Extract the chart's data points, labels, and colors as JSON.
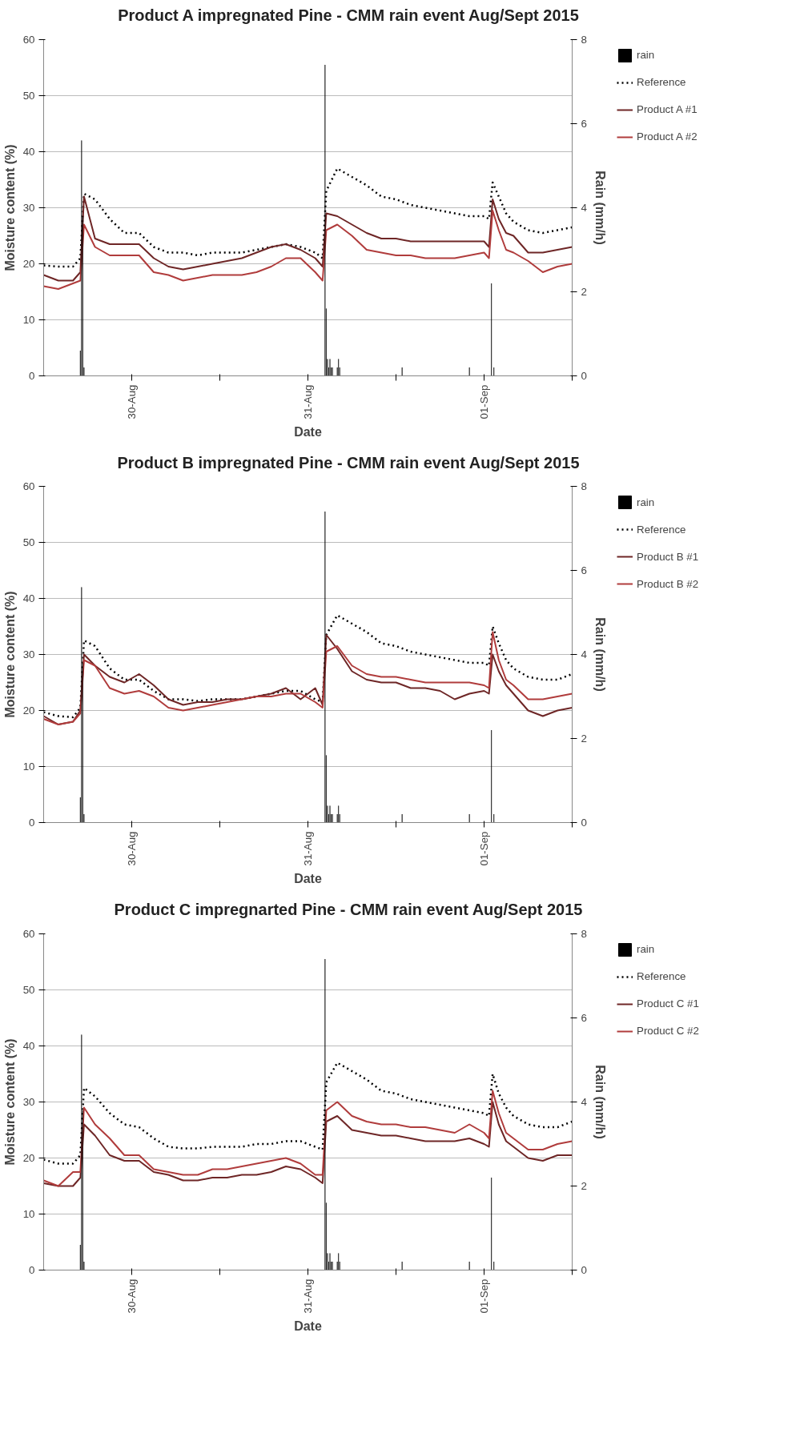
{
  "chart_data": [
    {
      "type": "line",
      "title": "Product A impregnated Pine - CMM rain event Aug/Sept 2015",
      "xlabel": "Date",
      "ylabel": "Moisture content (%)",
      "y2label": "Rain (mm/h)",
      "x": [
        "2015-08-29T12:00",
        "2015-08-29T14:00",
        "2015-08-29T16:00",
        "2015-08-29T17:00",
        "2015-08-29T17:30",
        "2015-08-29T19:00",
        "2015-08-29T21:00",
        "2015-08-29T23:00",
        "2015-08-30T01:00",
        "2015-08-30T03:00",
        "2015-08-30T05:00",
        "2015-08-30T07:00",
        "2015-08-30T09:00",
        "2015-08-30T11:00",
        "2015-08-30T13:00",
        "2015-08-30T15:00",
        "2015-08-30T17:00",
        "2015-08-30T19:00",
        "2015-08-30T21:00",
        "2015-08-30T23:00",
        "2015-08-31T01:00",
        "2015-08-31T02:00",
        "2015-08-31T02:30",
        "2015-08-31T04:00",
        "2015-08-31T06:00",
        "2015-08-31T08:00",
        "2015-08-31T10:00",
        "2015-08-31T12:00",
        "2015-08-31T14:00",
        "2015-08-31T16:00",
        "2015-08-31T18:00",
        "2015-08-31T20:00",
        "2015-08-31T22:00",
        "2015-09-01T00:00",
        "2015-09-01T00:40",
        "2015-09-01T01:10",
        "2015-09-01T02:00",
        "2015-09-01T03:00",
        "2015-09-01T04:00",
        "2015-09-01T06:00",
        "2015-09-01T08:00",
        "2015-09-01T10:00",
        "2015-09-01T12:00"
      ],
      "xlim": [
        "2015-08-29T12:00",
        "2015-09-01T12:00"
      ],
      "xticks": [
        {
          "value": "2015-08-30",
          "label": "30-Aug"
        },
        {
          "value": "2015-08-30T12:00",
          "label": null
        },
        {
          "value": "2015-08-31",
          "label": "31-Aug"
        },
        {
          "value": "2015-08-31T12:00",
          "label": null
        },
        {
          "value": "2015-09-01",
          "label": "01-Sep"
        },
        {
          "value": "2015-09-01T12:00",
          "label": null
        }
      ],
      "ylim": [
        0,
        60
      ],
      "yticks": [
        0,
        10,
        20,
        30,
        40,
        50,
        60
      ],
      "y2lim": [
        0,
        8
      ],
      "y2ticks": [
        0,
        2,
        4,
        6,
        8
      ],
      "grid": "y",
      "legend": "right",
      "series": [
        {
          "name": "rain",
          "type": "bar",
          "axis": "y2",
          "color": "#000000",
          "x": [
            "2015-08-29T17:00",
            "2015-08-29T17:10",
            "2015-08-29T17:20",
            "2015-08-29T17:30",
            "2015-08-31T02:20",
            "2015-08-31T02:30",
            "2015-08-31T02:40",
            "2015-08-31T02:50",
            "2015-08-31T03:00",
            "2015-08-31T03:10",
            "2015-08-31T03:20",
            "2015-08-31T04:00",
            "2015-08-31T04:10",
            "2015-08-31T04:20",
            "2015-08-31T12:50",
            "2015-08-31T22:00",
            "2015-09-01T01:00",
            "2015-09-01T01:20"
          ],
          "values": [
            0.6,
            5.6,
            3.8,
            0.2,
            7.4,
            1.6,
            0.4,
            0.2,
            0.4,
            0.2,
            0.2,
            0.2,
            0.4,
            0.2,
            0.2,
            0.2,
            2.2,
            0.2
          ]
        },
        {
          "name": "Reference",
          "color": "#000000",
          "line_style": "dotted",
          "values": [
            19.7,
            19.5,
            19.5,
            21,
            32.5,
            31.5,
            28,
            25.5,
            25.5,
            23,
            22,
            22,
            21.5,
            22,
            22,
            22,
            22.5,
            23,
            23.5,
            23,
            22,
            21,
            33,
            37,
            35.5,
            34,
            32,
            31.5,
            30.5,
            30,
            29.5,
            29,
            28.5,
            28.5,
            28,
            34.5,
            32,
            29,
            27.5,
            26,
            25.5,
            26,
            26.5
          ]
        },
        {
          "name": "Product A #1",
          "color": "#6e2626",
          "values": [
            18,
            17,
            17,
            18.5,
            32,
            24.5,
            23.5,
            23.5,
            23.5,
            21,
            19.5,
            19,
            19.5,
            20,
            20.5,
            21,
            22,
            23,
            23.5,
            22.5,
            21,
            19.5,
            29,
            28.5,
            27,
            25.5,
            24.5,
            24.5,
            24,
            24,
            24,
            24,
            24,
            24,
            23,
            31.5,
            28,
            25.5,
            25,
            22,
            22,
            22.5,
            23
          ]
        },
        {
          "name": "Product A #2",
          "color": "#b03c3c",
          "values": [
            16,
            15.5,
            16.5,
            17,
            27,
            23,
            21.5,
            21.5,
            21.5,
            18.5,
            18,
            17,
            17.5,
            18,
            18,
            18,
            18.5,
            19.5,
            21,
            21,
            18.5,
            17,
            26,
            27,
            25,
            22.5,
            22,
            21.5,
            21.5,
            21,
            21,
            21,
            21.5,
            22,
            21,
            29.5,
            26,
            22.5,
            22,
            20.5,
            18.5,
            19.5,
            20
          ]
        }
      ]
    },
    {
      "type": "line",
      "title": "Product B impregnated Pine - CMM rain event Aug/Sept 2015",
      "xlabel": "Date",
      "ylabel": "Moisture content (%)",
      "y2label": "Rain (mm/h)",
      "x": [
        "2015-08-29T12:00",
        "2015-08-29T14:00",
        "2015-08-29T16:00",
        "2015-08-29T17:00",
        "2015-08-29T17:30",
        "2015-08-29T19:00",
        "2015-08-29T21:00",
        "2015-08-29T23:00",
        "2015-08-30T01:00",
        "2015-08-30T03:00",
        "2015-08-30T05:00",
        "2015-08-30T07:00",
        "2015-08-30T09:00",
        "2015-08-30T11:00",
        "2015-08-30T13:00",
        "2015-08-30T15:00",
        "2015-08-30T17:00",
        "2015-08-30T19:00",
        "2015-08-30T21:00",
        "2015-08-30T23:00",
        "2015-08-31T01:00",
        "2015-08-31T02:00",
        "2015-08-31T02:30",
        "2015-08-31T04:00",
        "2015-08-31T06:00",
        "2015-08-31T08:00",
        "2015-08-31T10:00",
        "2015-08-31T12:00",
        "2015-08-31T14:00",
        "2015-08-31T16:00",
        "2015-08-31T18:00",
        "2015-08-31T20:00",
        "2015-08-31T22:00",
        "2015-09-01T00:00",
        "2015-09-01T00:40",
        "2015-09-01T01:10",
        "2015-09-01T02:00",
        "2015-09-01T03:00",
        "2015-09-01T04:00",
        "2015-09-01T06:00",
        "2015-09-01T08:00",
        "2015-09-01T10:00",
        "2015-09-01T12:00"
      ],
      "xlim": [
        "2015-08-29T12:00",
        "2015-09-01T12:00"
      ],
      "xticks": [
        {
          "value": "2015-08-30",
          "label": "30-Aug"
        },
        {
          "value": "2015-08-30T12:00",
          "label": null
        },
        {
          "value": "2015-08-31",
          "label": "31-Aug"
        },
        {
          "value": "2015-08-31T12:00",
          "label": null
        },
        {
          "value": "2015-09-01",
          "label": "01-Sep"
        },
        {
          "value": "2015-09-01T12:00",
          "label": null
        }
      ],
      "ylim": [
        0,
        60
      ],
      "yticks": [
        0,
        10,
        20,
        30,
        40,
        50,
        60
      ],
      "y2lim": [
        0,
        8
      ],
      "y2ticks": [
        0,
        2,
        4,
        6,
        8
      ],
      "grid": "y",
      "legend": "right",
      "series": [
        {
          "name": "rain",
          "type": "bar",
          "axis": "y2",
          "color": "#000000",
          "x": [
            "2015-08-29T17:00",
            "2015-08-29T17:10",
            "2015-08-29T17:20",
            "2015-08-29T17:30",
            "2015-08-31T02:20",
            "2015-08-31T02:30",
            "2015-08-31T02:40",
            "2015-08-31T02:50",
            "2015-08-31T03:00",
            "2015-08-31T03:10",
            "2015-08-31T03:20",
            "2015-08-31T04:00",
            "2015-08-31T04:10",
            "2015-08-31T04:20",
            "2015-08-31T12:50",
            "2015-08-31T22:00",
            "2015-09-01T01:00",
            "2015-09-01T01:20"
          ],
          "values": [
            0.6,
            5.6,
            3.8,
            0.2,
            7.4,
            1.6,
            0.4,
            0.2,
            0.4,
            0.2,
            0.2,
            0.2,
            0.4,
            0.2,
            0.2,
            0.2,
            2.2,
            0.2
          ]
        },
        {
          "name": "Reference",
          "color": "#000000",
          "line_style": "dotted",
          "values": [
            19.7,
            19,
            18.8,
            20.5,
            32.5,
            31.5,
            27.5,
            25.5,
            25.5,
            23.5,
            22,
            22,
            21.7,
            22,
            22,
            22,
            22.5,
            23,
            23.5,
            23.5,
            22,
            21.5,
            33.5,
            37,
            35.5,
            34,
            32,
            31.5,
            30.5,
            30,
            29.5,
            29,
            28.5,
            28.5,
            28,
            35,
            32,
            29,
            27.5,
            26,
            25.5,
            25.5,
            26.5
          ]
        },
        {
          "name": "Product B #1",
          "color": "#6e2626",
          "values": [
            19,
            17.5,
            18,
            20,
            30,
            28,
            26,
            25,
            26.5,
            24.5,
            22,
            21,
            21.5,
            21.5,
            22,
            22,
            22.5,
            23,
            24,
            22,
            24,
            21,
            33.5,
            31,
            27,
            25.5,
            25,
            25,
            24,
            24,
            23.5,
            22,
            23,
            23.5,
            23,
            30,
            27,
            24.5,
            23,
            20,
            19,
            20,
            20.5
          ]
        },
        {
          "name": "Product B #2",
          "color": "#b03c3c",
          "values": [
            18.5,
            17.5,
            18,
            19.5,
            29,
            28,
            24,
            23,
            23.5,
            22.5,
            20.5,
            20,
            20.5,
            21,
            21.5,
            22,
            22.5,
            22.5,
            23,
            23,
            21.5,
            20.5,
            30.5,
            31.5,
            28,
            26.5,
            26,
            26,
            25.5,
            25,
            25,
            25,
            25,
            24.5,
            24,
            34,
            29,
            25.5,
            24.5,
            22,
            22,
            22.5,
            23
          ]
        }
      ]
    },
    {
      "type": "line",
      "title": "Product C impregnarted Pine - CMM rain event Aug/Sept 2015",
      "xlabel": "Date",
      "ylabel": "Moisture content (%)",
      "y2label": "Rain (mm/h)",
      "x": [
        "2015-08-29T12:00",
        "2015-08-29T14:00",
        "2015-08-29T16:00",
        "2015-08-29T17:00",
        "2015-08-29T17:30",
        "2015-08-29T19:00",
        "2015-08-29T21:00",
        "2015-08-29T23:00",
        "2015-08-30T01:00",
        "2015-08-30T03:00",
        "2015-08-30T05:00",
        "2015-08-30T07:00",
        "2015-08-30T09:00",
        "2015-08-30T11:00",
        "2015-08-30T13:00",
        "2015-08-30T15:00",
        "2015-08-30T17:00",
        "2015-08-30T19:00",
        "2015-08-30T21:00",
        "2015-08-30T23:00",
        "2015-08-31T01:00",
        "2015-08-31T02:00",
        "2015-08-31T02:30",
        "2015-08-31T04:00",
        "2015-08-31T06:00",
        "2015-08-31T08:00",
        "2015-08-31T10:00",
        "2015-08-31T12:00",
        "2015-08-31T14:00",
        "2015-08-31T16:00",
        "2015-08-31T18:00",
        "2015-08-31T20:00",
        "2015-08-31T22:00",
        "2015-09-01T00:00",
        "2015-09-01T00:40",
        "2015-09-01T01:10",
        "2015-09-01T02:00",
        "2015-09-01T03:00",
        "2015-09-01T04:00",
        "2015-09-01T06:00",
        "2015-09-01T08:00",
        "2015-09-01T10:00",
        "2015-09-01T12:00"
      ],
      "xlim": [
        "2015-08-29T12:00",
        "2015-09-01T12:00"
      ],
      "xticks": [
        {
          "value": "2015-08-30",
          "label": "30-Aug"
        },
        {
          "value": "2015-08-30T12:00",
          "label": null
        },
        {
          "value": "2015-08-31",
          "label": "31-Aug"
        },
        {
          "value": "2015-08-31T12:00",
          "label": null
        },
        {
          "value": "2015-09-01",
          "label": "01-Sep"
        },
        {
          "value": "2015-09-01T12:00",
          "label": null
        }
      ],
      "ylim": [
        0,
        60
      ],
      "yticks": [
        0,
        10,
        20,
        30,
        40,
        50,
        60
      ],
      "y2lim": [
        0,
        8
      ],
      "y2ticks": [
        0,
        2,
        4,
        6,
        8
      ],
      "grid": "y",
      "legend": "right",
      "series": [
        {
          "name": "rain",
          "type": "bar",
          "axis": "y2",
          "color": "#000000",
          "x": [
            "2015-08-29T17:00",
            "2015-08-29T17:10",
            "2015-08-29T17:20",
            "2015-08-29T17:30",
            "2015-08-31T02:20",
            "2015-08-31T02:30",
            "2015-08-31T02:40",
            "2015-08-31T02:50",
            "2015-08-31T03:00",
            "2015-08-31T03:10",
            "2015-08-31T03:20",
            "2015-08-31T04:00",
            "2015-08-31T04:10",
            "2015-08-31T04:20",
            "2015-08-31T12:50",
            "2015-08-31T22:00",
            "2015-09-01T01:00",
            "2015-09-01T01:20"
          ],
          "values": [
            0.6,
            5.6,
            3.8,
            0.2,
            7.4,
            1.6,
            0.4,
            0.2,
            0.4,
            0.2,
            0.2,
            0.2,
            0.4,
            0.2,
            0.2,
            0.2,
            2.2,
            0.2
          ]
        },
        {
          "name": "Reference",
          "color": "#000000",
          "line_style": "dotted",
          "values": [
            19.7,
            19,
            19,
            20.5,
            32.5,
            31,
            28,
            26,
            25.5,
            23.5,
            22,
            21.7,
            21.7,
            22,
            22,
            22,
            22.5,
            22.5,
            23,
            23,
            22,
            21.5,
            33.5,
            37,
            35.5,
            34,
            32,
            31.5,
            30.5,
            30,
            29.5,
            29,
            28.5,
            28,
            27.5,
            35,
            31.5,
            29,
            27.5,
            26,
            25.5,
            25.5,
            26.5
          ]
        },
        {
          "name": "Product C #1",
          "color": "#6e2626",
          "values": [
            15.5,
            15,
            15,
            16.5,
            26,
            24,
            20.5,
            19.5,
            19.5,
            17.5,
            17,
            16,
            16,
            16.5,
            16.5,
            17,
            17,
            17.5,
            18.5,
            18,
            16.5,
            15.5,
            26.5,
            27.5,
            25,
            24.5,
            24,
            24,
            23.5,
            23,
            23,
            23,
            23.5,
            22.5,
            22,
            30,
            26,
            23,
            22,
            20,
            19.5,
            20.5,
            20.5
          ]
        },
        {
          "name": "Product C #2",
          "color": "#b03c3c",
          "values": [
            16,
            15,
            17.5,
            17.5,
            29,
            26,
            23.5,
            20.5,
            20.5,
            18,
            17.5,
            17,
            17,
            18,
            18,
            18.5,
            19,
            19.5,
            20,
            19,
            17,
            17,
            28.5,
            30,
            27.5,
            26.5,
            26,
            26,
            25.5,
            25.5,
            25,
            24.5,
            26,
            24.5,
            23.5,
            32,
            28,
            24.5,
            23.5,
            21.5,
            21.5,
            22.5,
            23
          ]
        }
      ]
    }
  ]
}
